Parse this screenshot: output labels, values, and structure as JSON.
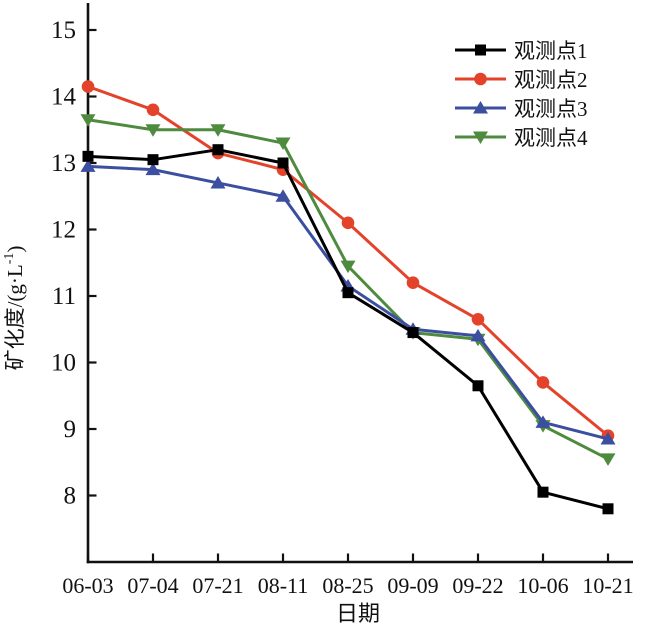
{
  "chart_data": {
    "type": "line",
    "title": "",
    "xlabel": "日期",
    "ylabel": "矿化度/(g·L⁻¹)",
    "x_categories": [
      "06-03",
      "07-04",
      "07-21",
      "08-11",
      "08-25",
      "09-09",
      "09-22",
      "10-06",
      "10-21"
    ],
    "y_ticks": [
      8,
      9,
      10,
      11,
      12,
      13,
      14,
      15
    ],
    "ylim": [
      7,
      15.4
    ],
    "grid": false,
    "legend_position": "upper-right-inside",
    "axis_color": "#111111",
    "series": [
      {
        "name": "观测点1",
        "color": "#000000",
        "marker": "square",
        "values": [
          13.1,
          13.05,
          13.2,
          13.0,
          11.05,
          10.45,
          9.65,
          8.05,
          7.8
        ]
      },
      {
        "name": "观测点2",
        "color": "#e4432b",
        "marker": "circle",
        "values": [
          14.15,
          13.8,
          13.15,
          12.9,
          12.1,
          11.2,
          10.65,
          9.7,
          8.9
        ]
      },
      {
        "name": "观测点3",
        "color": "#3b4ea0",
        "marker": "triangle-up",
        "values": [
          12.95,
          12.9,
          12.7,
          12.5,
          11.15,
          10.5,
          10.4,
          9.1,
          8.85
        ]
      },
      {
        "name": "观测点4",
        "color": "#4e8b3e",
        "marker": "triangle-down",
        "values": [
          13.65,
          13.5,
          13.5,
          13.3,
          11.45,
          10.45,
          10.35,
          9.05,
          8.55
        ]
      }
    ]
  }
}
